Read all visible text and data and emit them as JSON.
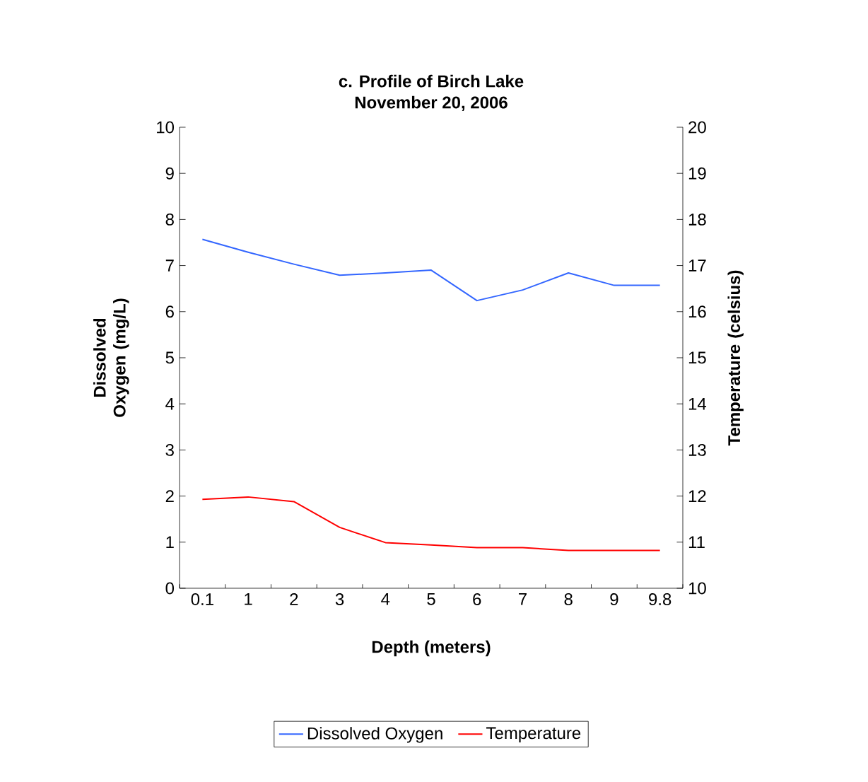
{
  "chart_data": {
    "type": "line",
    "title": "c. Profile of Birch Lake",
    "subtitle": "November 20, 2006",
    "xlabel": "Depth (meters)",
    "ylabel": "Dissolved Oxygen (mg/L)",
    "y2label": "Temperature (celsius)",
    "categories": [
      "0.1",
      "1",
      "2",
      "3",
      "4",
      "5",
      "6",
      "7",
      "8",
      "9",
      "9.8"
    ],
    "series": [
      {
        "name": "Dissolved Oxygen",
        "color": "#3366ff",
        "values": [
          7.57,
          7.29,
          7.03,
          6.79,
          6.84,
          6.9,
          6.24,
          6.47,
          6.84,
          6.57,
          6.57
        ]
      },
      {
        "name": "Temperature",
        "color": "#ff0000",
        "axis": "y2",
        "values": [
          11.93,
          11.98,
          11.88,
          11.32,
          10.99,
          10.94,
          10.88,
          10.88,
          10.82,
          10.82,
          10.82
        ]
      }
    ],
    "ylim": [
      0,
      10
    ],
    "yticks": [
      0,
      1,
      2,
      3,
      4,
      5,
      6,
      7,
      8,
      9,
      10
    ],
    "y2lim": [
      10,
      20
    ],
    "y2ticks": [
      10,
      11,
      12,
      13,
      14,
      15,
      16,
      17,
      18,
      19,
      20
    ],
    "legend": "bottom",
    "grid": false,
    "marker": "none",
    "line_style": "solid"
  }
}
